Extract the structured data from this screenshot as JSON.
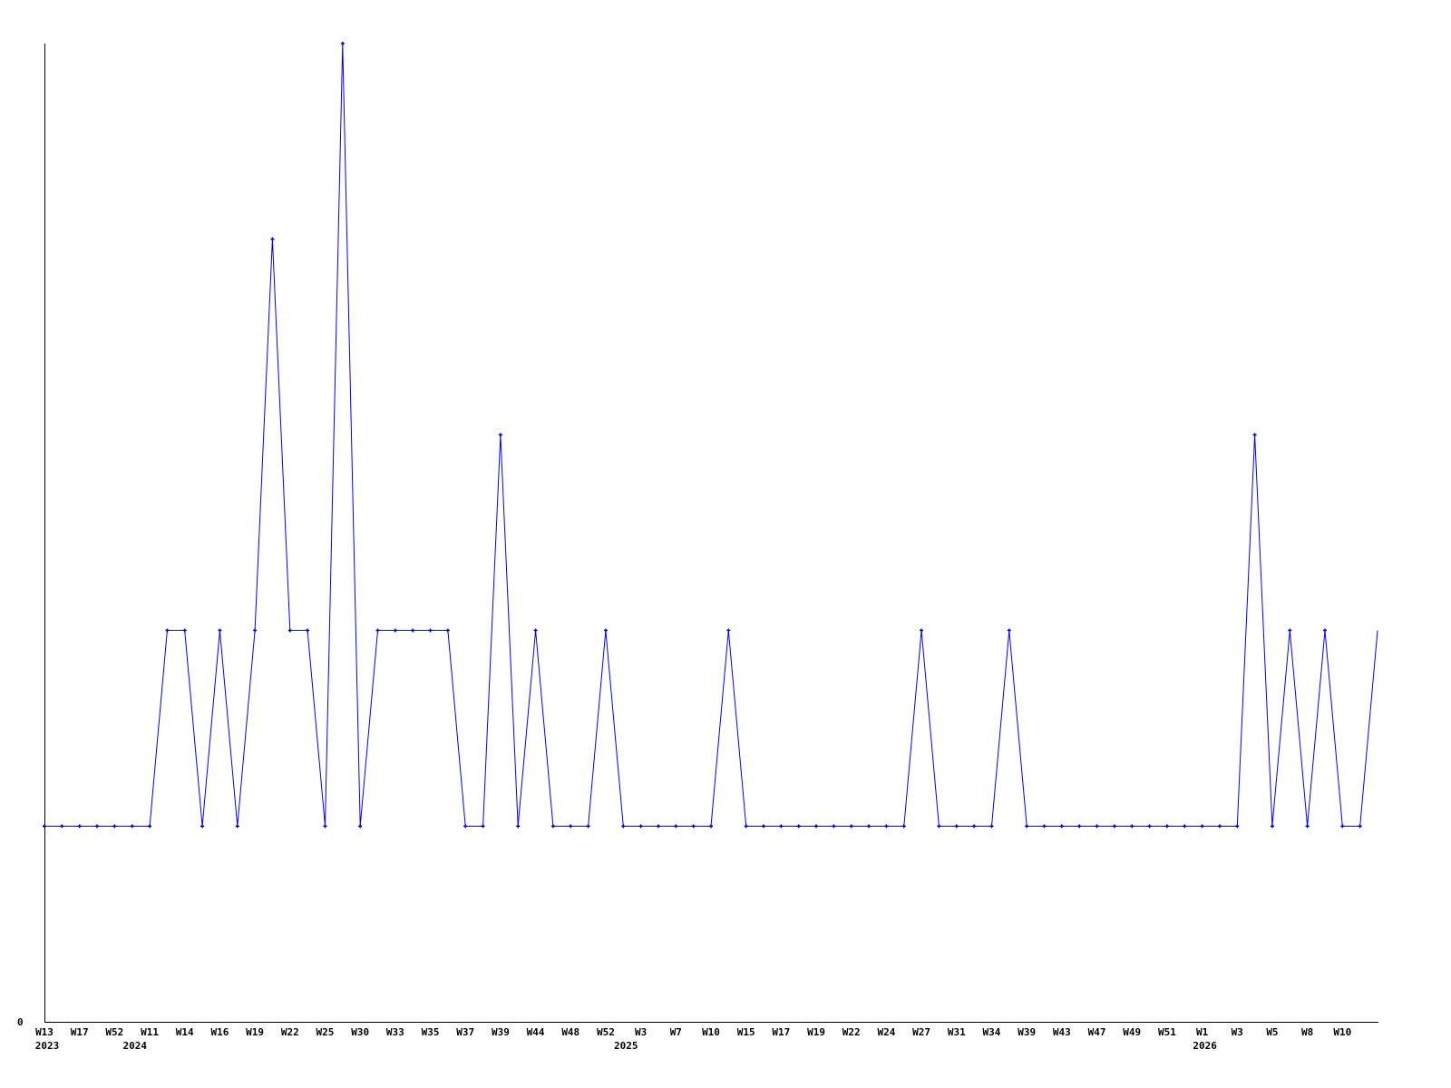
{
  "chart_data": {
    "type": "line",
    "title": "",
    "xlabel": "",
    "ylabel": "",
    "ylim": [
      0,
      5
    ],
    "y_tick_labels": [
      "0"
    ],
    "grid": false,
    "line_color": "#0000ff",
    "axis_color": "#000000",
    "x_tick_labels": [
      "W13",
      "",
      "W17",
      "",
      "W52",
      "",
      "W11",
      "",
      "W14",
      "",
      "W16",
      "",
      "W19",
      "",
      "W22",
      "",
      "W25",
      "",
      "W30",
      "",
      "W33",
      "",
      "W35",
      "",
      "W37",
      "",
      "W39",
      "",
      "W44",
      "",
      "W48",
      "",
      "W52",
      "",
      "W3",
      "",
      "W7",
      "",
      "W10",
      "",
      "W15",
      "",
      "W17",
      "",
      "W19",
      "",
      "W22",
      "",
      "W24",
      "",
      "W27",
      "",
      "W31",
      "",
      "W34",
      "",
      "W39",
      "",
      "W43",
      "",
      "W47",
      "",
      "W49",
      "",
      "W51",
      "",
      "W1",
      "",
      "W3",
      "",
      "W5",
      "",
      "W8",
      "",
      "W10",
      "",
      ""
    ],
    "year_labels": [
      {
        "label": "2023",
        "index": 0
      },
      {
        "label": "2024",
        "index": 5
      },
      {
        "label": "2025",
        "index": 33
      },
      {
        "label": "2026",
        "index": 66
      }
    ],
    "series": [
      {
        "values": [
          1,
          1,
          1,
          1,
          1,
          1,
          1,
          2,
          2,
          1,
          2,
          1,
          2,
          4,
          2,
          2,
          1,
          5,
          1,
          2,
          2,
          2,
          2,
          2,
          1,
          1,
          3,
          1,
          2,
          1,
          1,
          1,
          2,
          1,
          1,
          1,
          1,
          1,
          1,
          2,
          1,
          1,
          1,
          1,
          1,
          1,
          1,
          1,
          1,
          1,
          2,
          1,
          1,
          1,
          1,
          2,
          1,
          1,
          1,
          1,
          1,
          1,
          1,
          1,
          1,
          1,
          1,
          1,
          1,
          3,
          1,
          2,
          1,
          2,
          1,
          1,
          2
        ]
      }
    ]
  }
}
